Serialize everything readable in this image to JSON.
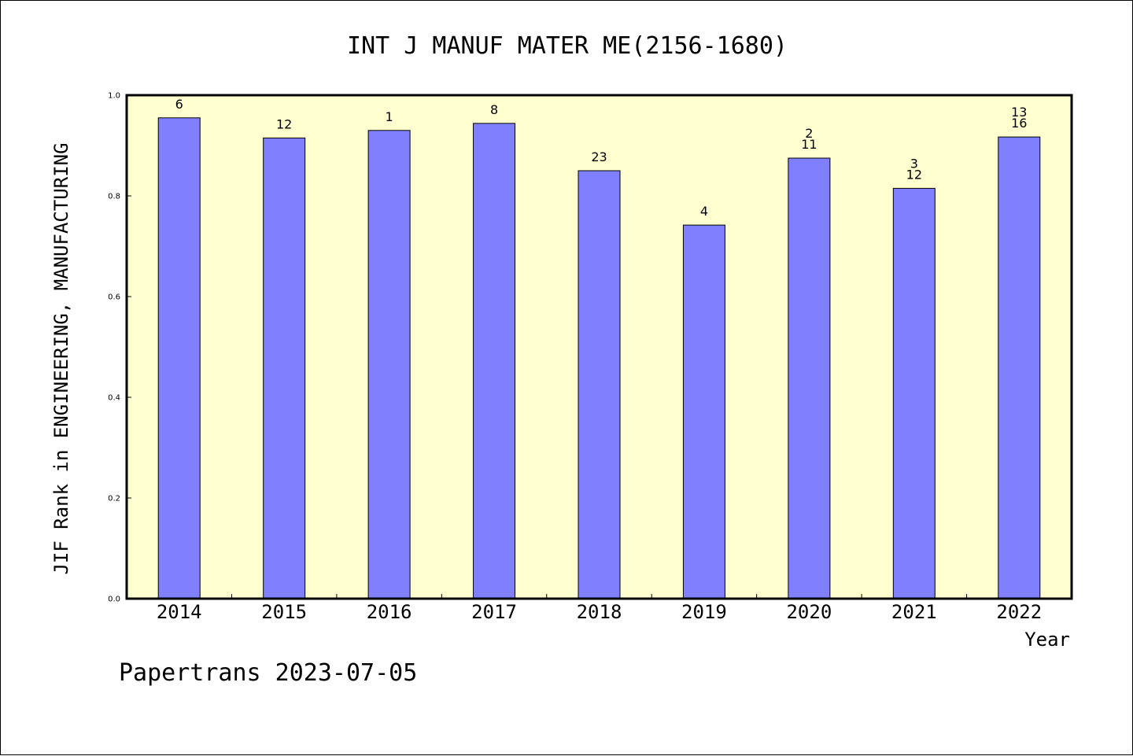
{
  "chart_data": {
    "type": "bar",
    "title": "INT J MANUF MATER ME(2156-1680)",
    "xlabel": "Year",
    "ylabel": "JIF Rank in ENGINEERING, MANUFACTURING",
    "ylim": [
      0,
      1.0
    ],
    "yticks": [
      "0.0",
      "0.2",
      "0.4",
      "0.6",
      "0.8",
      "1.0"
    ],
    "categories": [
      "2014",
      "2015",
      "2016",
      "2017",
      "2018",
      "2019",
      "2020",
      "2021",
      "2022"
    ],
    "values": [
      0.955,
      0.915,
      0.93,
      0.944,
      0.85,
      0.742,
      0.875,
      0.815,
      0.917
    ],
    "bar_labels": [
      [
        "6"
      ],
      [
        "12"
      ],
      [
        "1"
      ],
      [
        "8"
      ],
      [
        "23"
      ],
      [
        "4"
      ],
      [
        "2",
        "11"
      ],
      [
        "3",
        "12"
      ],
      [
        "13",
        "16"
      ]
    ],
    "grid": false,
    "colors": {
      "bar": "#8080ff",
      "plot_bg": "#ffffd0",
      "axis": "#000000"
    }
  },
  "footer": "Papertrans 2023-07-05"
}
